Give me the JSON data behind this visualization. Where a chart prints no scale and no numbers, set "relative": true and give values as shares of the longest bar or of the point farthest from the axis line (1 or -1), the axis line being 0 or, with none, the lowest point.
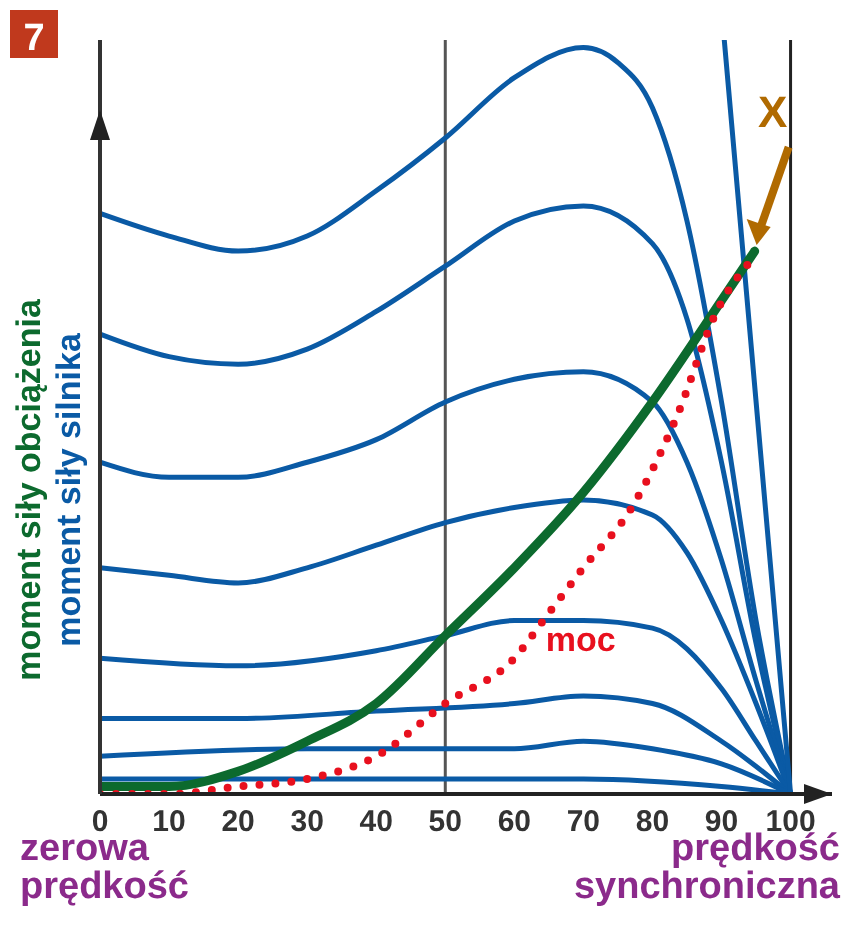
{
  "chart_data": {
    "type": "line",
    "title": "7",
    "relative": true,
    "marker": "none",
    "xlim": [
      0,
      106
    ],
    "xticks": [
      0,
      10,
      20,
      30,
      40,
      50,
      60,
      70,
      80,
      90,
      100
    ],
    "series": [
      {
        "name": "moment siły silnika",
        "color": "#0a5aa5",
        "x": [
          0,
          10,
          20,
          30,
          40,
          50,
          60,
          70,
          75,
          80,
          85,
          90,
          95,
          100
        ],
        "values": [
          0.77,
          0.74,
          0.72,
          0.74,
          0.8,
          0.87,
          0.95,
          0.99,
          0.97,
          0.91,
          0.76,
          0.52,
          0.23,
          0
        ]
      },
      {
        "color": "#0a5aa5",
        "x": [
          0,
          10,
          20,
          30,
          40,
          50,
          60,
          70,
          80,
          85,
          90,
          95,
          100
        ],
        "values": [
          0.61,
          0.58,
          0.57,
          0.59,
          0.64,
          0.7,
          0.76,
          0.78,
          0.73,
          0.63,
          0.44,
          0.2,
          0
        ]
      },
      {
        "color": "#0a5aa5",
        "x": [
          0,
          10,
          20,
          30,
          40,
          50,
          60,
          70,
          80,
          85,
          90,
          95,
          100
        ],
        "values": [
          0.44,
          0.42,
          0.42,
          0.44,
          0.47,
          0.52,
          0.55,
          0.56,
          0.52,
          0.44,
          0.31,
          0.15,
          0
        ]
      },
      {
        "color": "#0a5aa5",
        "x": [
          0,
          10,
          20,
          30,
          40,
          50,
          60,
          70,
          80,
          85,
          90,
          95,
          100
        ],
        "values": [
          0.3,
          0.29,
          0.28,
          0.3,
          0.33,
          0.36,
          0.38,
          0.39,
          0.37,
          0.32,
          0.23,
          0.12,
          0
        ]
      },
      {
        "color": "#0a5aa5",
        "x": [
          0,
          20,
          40,
          50,
          60,
          70,
          80,
          90,
          95,
          100
        ],
        "values": [
          0.18,
          0.17,
          0.19,
          0.21,
          0.23,
          0.23,
          0.22,
          0.14,
          0.07,
          0
        ]
      },
      {
        "color": "#0a5aa5",
        "x": [
          0,
          20,
          40,
          60,
          70,
          80,
          90,
          100
        ],
        "values": [
          0.1,
          0.1,
          0.11,
          0.12,
          0.13,
          0.12,
          0.07,
          0
        ]
      },
      {
        "color": "#0a5aa5",
        "x": [
          0,
          30,
          60,
          70,
          80,
          90,
          100
        ],
        "values": [
          0.05,
          0.06,
          0.06,
          0.07,
          0.06,
          0.04,
          0
        ]
      },
      {
        "color": "#0a5aa5",
        "x": [
          0,
          50,
          70,
          90,
          100
        ],
        "values": [
          0.02,
          0.02,
          0.02,
          0.01,
          0
        ]
      },
      {
        "color": "#0a5aa5",
        "x": [
          90.4,
          100
        ],
        "values": [
          1,
          0
        ]
      },
      {
        "name": "moment siły obciążenia",
        "color": "#0c6a2e",
        "x": [
          0,
          10,
          20,
          30,
          40,
          50,
          60,
          70,
          80,
          90.4,
          94.8
        ],
        "values": [
          0.01,
          0.01,
          0.03,
          0.07,
          0.12,
          0.21,
          0.3,
          0.4,
          0.52,
          0.66,
          0.72
        ]
      },
      {
        "name": "moc",
        "color": "#e8101e",
        "line_style": "dotted",
        "x": [
          0,
          10,
          20,
          30,
          40,
          50,
          60,
          65,
          70,
          77,
          83.5,
          89.3,
          94.5
        ],
        "values": [
          0,
          0,
          0.01,
          0.02,
          0.05,
          0.12,
          0.18,
          0.24,
          0.3,
          0.38,
          0.5,
          0.64,
          0.71
        ]
      }
    ],
    "ref_lines": [
      {
        "axis": "x",
        "value": 50,
        "color": "#555555"
      },
      {
        "axis": "x",
        "value": 100,
        "color": "#222222"
      }
    ],
    "annotations": [
      {
        "text": "X",
        "x": 94.8,
        "y": 0.72
      },
      "zerowa prędkość",
      "prędkość synchroniczna"
    ]
  }
}
